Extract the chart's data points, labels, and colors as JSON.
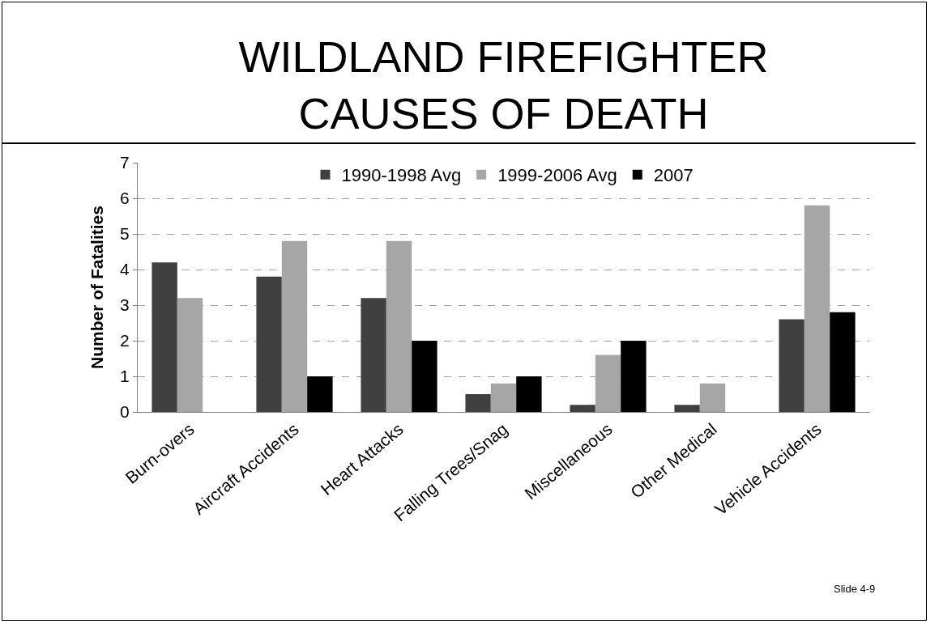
{
  "chart_data": {
    "type": "bar",
    "title": "WILDLAND FIREFIGHTER\nCAUSES OF DEATH",
    "ylabel": "Number of Fatalities",
    "categories": [
      "Burn-overs",
      "Aircraft Accidents",
      "Heart Attacks",
      "Falling Trees/Snag",
      "Miscellaneous",
      "Other Medical",
      "Vehicle Accidents"
    ],
    "series": [
      {
        "name": "1990-1998 Avg",
        "color": "#404040",
        "values": [
          4.2,
          3.8,
          3.2,
          0.5,
          0.2,
          0.2,
          2.6
        ]
      },
      {
        "name": "1999-2006 Avg",
        "color": "#a6a6a6",
        "values": [
          3.2,
          4.8,
          4.8,
          0.8,
          1.6,
          0.8,
          5.8
        ]
      },
      {
        "name": "2007",
        "color": "#000000",
        "values": [
          0,
          1,
          2,
          1,
          2,
          0,
          2.8
        ]
      }
    ],
    "ylim": [
      0,
      7
    ],
    "yticks": [
      0,
      1,
      2,
      3,
      4,
      5,
      6,
      7
    ],
    "grid": "y",
    "legend": "top",
    "annotations": [
      "Slide 4-9"
    ]
  }
}
